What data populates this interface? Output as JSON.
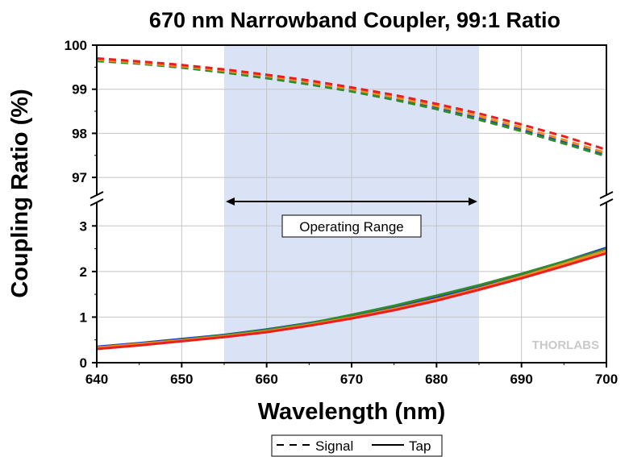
{
  "chart_data": {
    "type": "line",
    "title": "670 nm Narrowband Coupler, 99:1 Ratio",
    "xlabel": "Wavelength (nm)",
    "ylabel": "Coupling Ratio (%)",
    "xlim": [
      640,
      700
    ],
    "x_ticks": [
      "640",
      "650",
      "660",
      "670",
      "680",
      "690",
      "700"
    ],
    "y_upper_range": [
      96.6,
      100
    ],
    "y_lower_range": [
      0,
      3.5
    ],
    "y_ticks_upper": [
      "100",
      "99",
      "98",
      "97"
    ],
    "y_ticks_lower": [
      "3",
      "2",
      "1",
      "0"
    ],
    "axis_break": true,
    "grid": true,
    "operating_range": {
      "label": "Operating Range",
      "from": 655,
      "to": 685
    },
    "watermark": "THORLABS",
    "colors": [
      "#1f3fbf",
      "#2e8b2e",
      "#f08c1e",
      "#e62020"
    ],
    "legend": {
      "position": "bottom",
      "entries": [
        {
          "label": "Signal",
          "style": "dashed"
        },
        {
          "label": "Tap",
          "style": "solid"
        }
      ]
    },
    "x": [
      640,
      645,
      650,
      655,
      660,
      665,
      670,
      675,
      680,
      685,
      690,
      695,
      700
    ],
    "series": [
      {
        "group": "Signal",
        "values": [
          99.66,
          99.59,
          99.5,
          99.4,
          99.27,
          99.13,
          98.98,
          98.79,
          98.58,
          98.35,
          98.08,
          97.8,
          97.5
        ]
      },
      {
        "group": "Signal",
        "values": [
          99.64,
          99.58,
          99.49,
          99.38,
          99.25,
          99.11,
          98.95,
          98.76,
          98.55,
          98.31,
          98.05,
          97.77,
          97.48
        ]
      },
      {
        "group": "Signal",
        "values": [
          99.67,
          99.6,
          99.52,
          99.42,
          99.3,
          99.16,
          99.0,
          98.82,
          98.62,
          98.39,
          98.13,
          97.85,
          97.55
        ]
      },
      {
        "group": "Signal",
        "values": [
          99.7,
          99.63,
          99.55,
          99.45,
          99.33,
          99.2,
          99.04,
          98.87,
          98.67,
          98.45,
          98.2,
          97.93,
          97.63
        ]
      },
      {
        "group": "Tap",
        "values": [
          0.35,
          0.43,
          0.52,
          0.61,
          0.73,
          0.87,
          1.03,
          1.22,
          1.43,
          1.67,
          1.93,
          2.22,
          2.52
        ]
      },
      {
        "group": "Tap",
        "values": [
          0.33,
          0.41,
          0.5,
          0.6,
          0.72,
          0.86,
          1.05,
          1.25,
          1.47,
          1.7,
          1.95,
          2.22,
          2.49
        ]
      },
      {
        "group": "Tap",
        "values": [
          0.33,
          0.41,
          0.49,
          0.58,
          0.69,
          0.83,
          0.99,
          1.18,
          1.39,
          1.63,
          1.89,
          2.17,
          2.46
        ]
      },
      {
        "group": "Tap",
        "values": [
          0.3,
          0.38,
          0.47,
          0.56,
          0.67,
          0.81,
          0.97,
          1.15,
          1.36,
          1.6,
          1.85,
          2.12,
          2.4
        ]
      }
    ]
  }
}
